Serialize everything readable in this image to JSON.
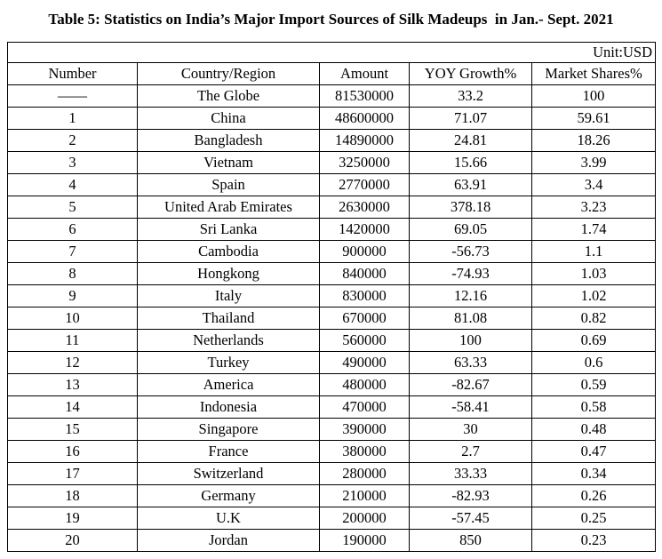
{
  "title": "Table 5: Statistics on India’s Major Import Sources of Silk Madeups  in Jan.- Sept. 2021",
  "unit": "Unit:USD",
  "headers": {
    "number": "Number",
    "country": "Country/Region",
    "amount": "Amount",
    "yoy": "YOY Growth%",
    "share": "Market Shares%"
  },
  "rows": [
    {
      "number": "——",
      "country": "The Globe",
      "amount": "81530000",
      "yoy": "33.2",
      "share": "100"
    },
    {
      "number": "1",
      "country": "China",
      "amount": "48600000",
      "yoy": "71.07",
      "share": "59.61"
    },
    {
      "number": "2",
      "country": "Bangladesh",
      "amount": "14890000",
      "yoy": "24.81",
      "share": "18.26"
    },
    {
      "number": "3",
      "country": "Vietnam",
      "amount": "3250000",
      "yoy": "15.66",
      "share": "3.99"
    },
    {
      "number": "4",
      "country": "Spain",
      "amount": "2770000",
      "yoy": "63.91",
      "share": "3.4"
    },
    {
      "number": "5",
      "country": "United Arab Emirates",
      "amount": "2630000",
      "yoy": "378.18",
      "share": "3.23"
    },
    {
      "number": "6",
      "country": "Sri Lanka",
      "amount": "1420000",
      "yoy": "69.05",
      "share": "1.74"
    },
    {
      "number": "7",
      "country": "Cambodia",
      "amount": "900000",
      "yoy": "-56.73",
      "share": "1.1"
    },
    {
      "number": "8",
      "country": "Hongkong",
      "amount": "840000",
      "yoy": "-74.93",
      "share": "1.03"
    },
    {
      "number": "9",
      "country": "Italy",
      "amount": "830000",
      "yoy": "12.16",
      "share": "1.02"
    },
    {
      "number": "10",
      "country": "Thailand",
      "amount": "670000",
      "yoy": "81.08",
      "share": "0.82"
    },
    {
      "number": "11",
      "country": "Netherlands",
      "amount": "560000",
      "yoy": "100",
      "share": "0.69"
    },
    {
      "number": "12",
      "country": "Turkey",
      "amount": "490000",
      "yoy": "63.33",
      "share": "0.6"
    },
    {
      "number": "13",
      "country": "America",
      "amount": "480000",
      "yoy": "-82.67",
      "share": "0.59"
    },
    {
      "number": "14",
      "country": "Indonesia",
      "amount": "470000",
      "yoy": "-58.41",
      "share": "0.58"
    },
    {
      "number": "15",
      "country": "Singapore",
      "amount": "390000",
      "yoy": "30",
      "share": "0.48"
    },
    {
      "number": "16",
      "country": "France",
      "amount": "380000",
      "yoy": "2.7",
      "share": "0.47"
    },
    {
      "number": "17",
      "country": "Switzerland",
      "amount": "280000",
      "yoy": "33.33",
      "share": "0.34"
    },
    {
      "number": "18",
      "country": "Germany",
      "amount": "210000",
      "yoy": "-82.93",
      "share": "0.26"
    },
    {
      "number": "19",
      "country": "U.K",
      "amount": "200000",
      "yoy": "-57.45",
      "share": "0.25"
    },
    {
      "number": "20",
      "country": "Jordan",
      "amount": "190000",
      "yoy": "850",
      "share": "0.23"
    }
  ]
}
